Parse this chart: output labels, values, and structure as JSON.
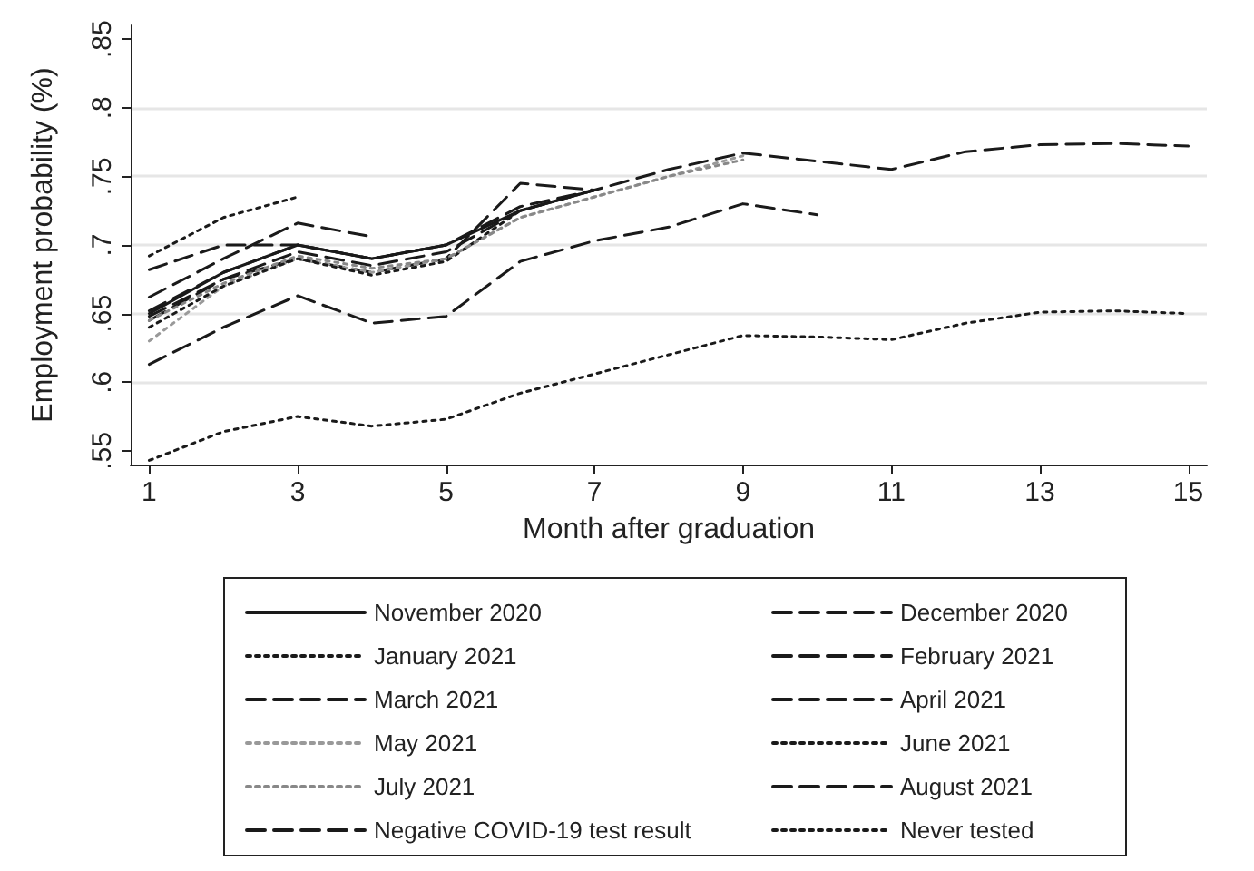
{
  "chart_data": {
    "type": "line",
    "xlabel": "Month after graduation",
    "ylabel": "Employment probability (%)",
    "xlim": [
      0.75,
      15.25
    ],
    "xticks": [
      1,
      3,
      5,
      7,
      9,
      11,
      13,
      15
    ],
    "ylim": [
      0.54,
      0.86
    ],
    "yticks": [
      {
        "value": 0.55,
        "label": ".55"
      },
      {
        "value": 0.6,
        "label": ".6"
      },
      {
        "value": 0.65,
        "label": ".65"
      },
      {
        "value": 0.7,
        "label": ".7"
      },
      {
        "value": 0.75,
        "label": ".75"
      },
      {
        "value": 0.8,
        "label": ".8"
      },
      {
        "value": 0.85,
        "label": ".85"
      }
    ],
    "grid": "y",
    "legend": "bottom",
    "marker": "none",
    "series": [
      {
        "name": "November 2020",
        "color": "#1a1a1a",
        "line_style": "solid",
        "x": [
          1,
          2,
          3,
          4,
          5,
          6,
          7
        ],
        "values": [
          0.65,
          0.68,
          0.7,
          0.69,
          0.7,
          0.725,
          0.74
        ]
      },
      {
        "name": "December 2020",
        "color": "#1a1a1a",
        "line_style": "dashed",
        "x": [
          1,
          2,
          3,
          4,
          5,
          6,
          7
        ],
        "values": [
          0.648,
          0.675,
          0.695,
          0.685,
          0.695,
          0.725,
          0.74
        ]
      },
      {
        "name": "January 2021",
        "color": "#1a1a1a",
        "line_style": "dotted",
        "x": [
          1,
          2,
          3
        ],
        "values": [
          0.692,
          0.72,
          0.735
        ]
      },
      {
        "name": "February 2021",
        "color": "#1a1a1a",
        "line_style": "dashed",
        "x": [
          1,
          2,
          3,
          4
        ],
        "values": [
          0.662,
          0.69,
          0.716,
          0.706
        ]
      },
      {
        "name": "March 2021",
        "color": "#1a1a1a",
        "line_style": "dashed",
        "x": [
          1,
          2,
          3,
          4,
          5
        ],
        "values": [
          0.682,
          0.7,
          0.7,
          0.69,
          0.7
        ]
      },
      {
        "name": "April 2021",
        "color": "#1a1a1a",
        "line_style": "dashed",
        "x": [
          1,
          2,
          3,
          4,
          5,
          6,
          7
        ],
        "values": [
          0.645,
          0.675,
          0.69,
          0.68,
          0.69,
          0.745,
          0.74
        ]
      },
      {
        "name": "May 2021",
        "color": "#999999",
        "line_style": "dotted",
        "x": [
          1,
          2,
          3,
          4,
          5,
          6,
          7,
          8,
          9
        ],
        "values": [
          0.63,
          0.67,
          0.69,
          0.68,
          0.69,
          0.72,
          0.735,
          0.75,
          0.765
        ]
      },
      {
        "name": "June 2021",
        "color": "#1a1a1a",
        "line_style": "dotted",
        "x": [
          1,
          2,
          3,
          4,
          5,
          6,
          7
        ],
        "values": [
          0.64,
          0.67,
          0.69,
          0.678,
          0.688,
          0.725,
          0.74
        ]
      },
      {
        "name": "July 2021",
        "color": "#888888",
        "line_style": "dotted",
        "x": [
          1,
          2,
          3,
          4,
          5,
          6,
          7,
          8,
          9
        ],
        "values": [
          0.645,
          0.672,
          0.692,
          0.683,
          0.69,
          0.72,
          0.735,
          0.75,
          0.762
        ]
      },
      {
        "name": "August 2021",
        "color": "#1a1a1a",
        "line_style": "dashed",
        "x": [
          1,
          2,
          3,
          4,
          5,
          6,
          7,
          8,
          9,
          10
        ],
        "values": [
          0.613,
          0.64,
          0.663,
          0.643,
          0.648,
          0.688,
          0.703,
          0.713,
          0.73,
          0.722
        ]
      },
      {
        "name": "Negative COVID-19 test result",
        "color": "#1a1a1a",
        "line_style": "dashed",
        "x": [
          1,
          2,
          3,
          4,
          5,
          6,
          7,
          8,
          9,
          10,
          11,
          12,
          13,
          14,
          15
        ],
        "values": [
          0.652,
          0.68,
          0.7,
          0.69,
          0.7,
          0.728,
          0.74,
          0.755,
          0.767,
          0.761,
          0.755,
          0.768,
          0.773,
          0.774,
          0.772
        ]
      },
      {
        "name": "Never tested",
        "color": "#1a1a1a",
        "line_style": "dotted",
        "x": [
          1,
          2,
          3,
          4,
          5,
          6,
          7,
          8,
          9,
          10,
          11,
          12,
          13,
          14,
          15
        ],
        "values": [
          0.543,
          0.564,
          0.575,
          0.568,
          0.573,
          0.592,
          0.606,
          0.62,
          0.634,
          0.633,
          0.631,
          0.643,
          0.651,
          0.652,
          0.65
        ]
      }
    ]
  }
}
